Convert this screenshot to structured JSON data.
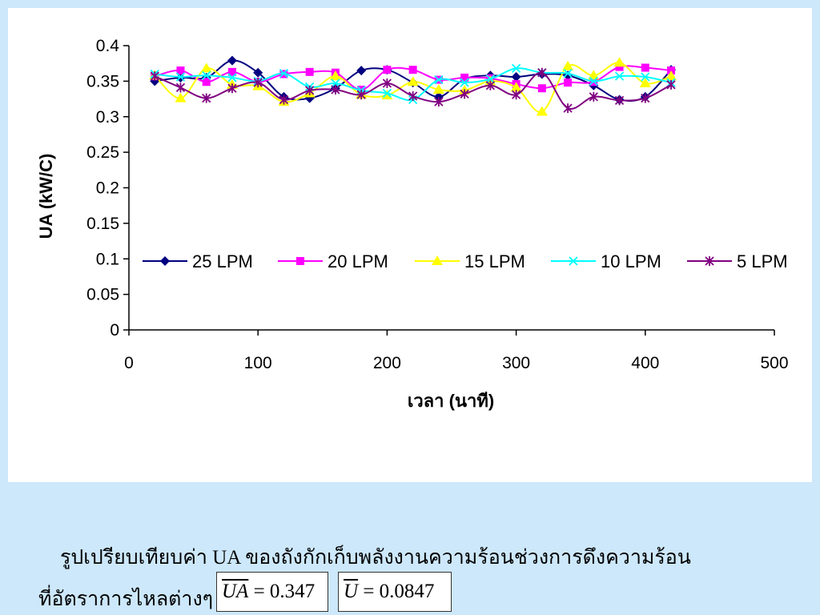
{
  "chart_data": {
    "type": "line",
    "title": "",
    "xlabel": "เวลา (นาที)",
    "ylabel": "UA (kW/C)",
    "xlim": [
      0,
      500
    ],
    "ylim": [
      0,
      0.4
    ],
    "xticks": [
      "0",
      "100",
      "200",
      "300",
      "400",
      "500"
    ],
    "yticks": [
      "0",
      "0.05",
      "0.1",
      "0.15",
      "0.2",
      "0.25",
      "0.3",
      "0.35",
      "0.4"
    ],
    "grid": false,
    "legend_position": "inside-center",
    "x": [
      20,
      40,
      60,
      80,
      100,
      120,
      140,
      160,
      180,
      200,
      220,
      240,
      260,
      280,
      300,
      320,
      340,
      360,
      380,
      400,
      420
    ],
    "series": [
      {
        "name": "25 LPM",
        "color": "#000080",
        "marker": "diamond",
        "values": [
          0.35,
          0.355,
          0.355,
          0.379,
          0.362,
          0.328,
          0.326,
          0.34,
          0.365,
          0.366,
          0.348,
          0.328,
          0.353,
          0.358,
          0.356,
          0.36,
          0.358,
          0.344,
          0.324,
          0.328,
          0.366
        ]
      },
      {
        "name": "20 LPM",
        "color": "#ff00ff",
        "marker": "square",
        "values": [
          0.357,
          0.365,
          0.349,
          0.363,
          0.349,
          0.36,
          0.363,
          0.362,
          0.338,
          0.366,
          0.366,
          0.352,
          0.355,
          0.354,
          0.346,
          0.34,
          0.348,
          0.349,
          0.37,
          0.369,
          0.365
        ]
      },
      {
        "name": "15 LPM",
        "color": "#ffff00",
        "marker": "triangle",
        "values": [
          0.358,
          0.326,
          0.368,
          0.345,
          0.343,
          0.321,
          0.333,
          0.357,
          0.331,
          0.33,
          0.349,
          0.338,
          0.337,
          0.35,
          0.341,
          0.307,
          0.371,
          0.358,
          0.376,
          0.347,
          0.357
        ]
      },
      {
        "name": "10 LPM",
        "color": "#00ffff",
        "marker": "x",
        "values": [
          0.36,
          0.356,
          0.358,
          0.355,
          0.35,
          0.361,
          0.342,
          0.347,
          0.337,
          0.333,
          0.324,
          0.352,
          0.348,
          0.353,
          0.368,
          0.362,
          0.361,
          0.35,
          0.357,
          0.356,
          0.348
        ]
      },
      {
        "name": "5 LPM",
        "color": "#800080",
        "marker": "star",
        "values": [
          0.357,
          0.341,
          0.326,
          0.34,
          0.348,
          0.324,
          0.337,
          0.338,
          0.331,
          0.347,
          0.329,
          0.321,
          0.332,
          0.344,
          0.331,
          0.362,
          0.312,
          0.328,
          0.323,
          0.326,
          0.345
        ]
      }
    ]
  },
  "caption": {
    "line1": "รูปเปรียบเทียบค่า UA ของถังกักเก็บพลังงานความร้อนช่วงการดึงความร้อน",
    "line2": "ที่อัตราการไหลต่างๆ",
    "formula_ua_symbol": "UA",
    "formula_ua_value": "= 0.347",
    "formula_u_symbol": "U",
    "formula_u_value": "= 0.0847"
  }
}
